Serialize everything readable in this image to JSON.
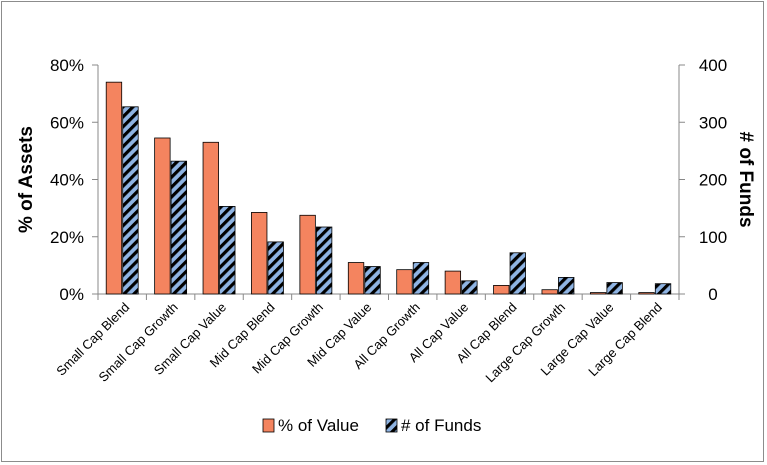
{
  "chart_data": {
    "type": "bar",
    "categories": [
      "Small Cap Blend",
      "Small Cap Growth",
      "Small Cap Value",
      "Mid Cap Blend",
      "Mid Cap Growth",
      "Mid Cap Value",
      "All Cap Growth",
      "All Cap Value",
      "All Cap Blend",
      "Large Cap Growth",
      "Large Cap Value",
      "Large Cap Blend"
    ],
    "series": [
      {
        "name": "% of Value",
        "axis": "left",
        "color": "#f4845f",
        "values": [
          74,
          54.5,
          53,
          28.5,
          27.5,
          11,
          8.5,
          8,
          3,
          1.5,
          0.5,
          0.5
        ]
      },
      {
        "name": "# of Funds",
        "axis": "right",
        "color": "#8fb4e3",
        "pattern": "diagonal-stripes-black",
        "values": [
          327,
          232,
          153,
          91,
          117,
          48,
          55,
          23,
          72,
          29,
          20,
          18
        ]
      }
    ],
    "ylabel": "% of Assets",
    "y2label": "# of Funds",
    "ylim": [
      0,
      80
    ],
    "y2lim": [
      0,
      400
    ],
    "yticks": [
      "0%",
      "20%",
      "40%",
      "60%",
      "80%"
    ],
    "y2ticks": [
      "0",
      "100",
      "200",
      "300",
      "400"
    ],
    "grid": false,
    "legend_position": "bottom"
  }
}
